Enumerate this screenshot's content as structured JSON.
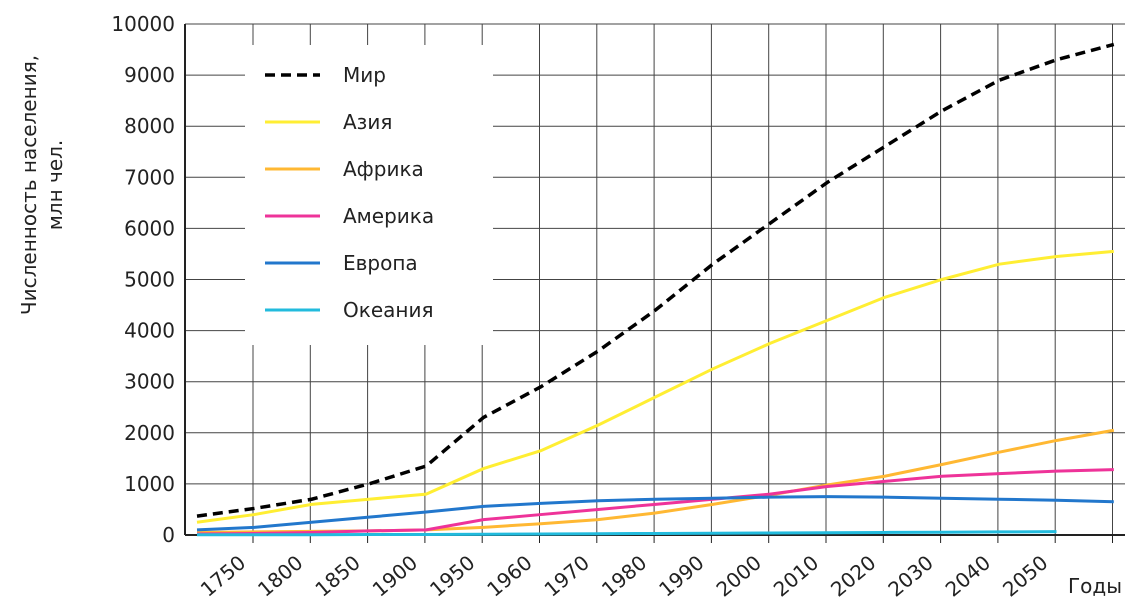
{
  "chart_data": {
    "type": "line",
    "ylabel": [
      "Численность населения,",
      "млн чел."
    ],
    "xlabel": "Годы",
    "categories": [
      "1750",
      "1800",
      "1850",
      "1900",
      "1950",
      "1960",
      "1970",
      "1980",
      "1990",
      "2000",
      "2010",
      "2020",
      "2030",
      "2040",
      "2050",
      null,
      null
    ],
    "series": [
      {
        "name": "Мир",
        "color": "#000000",
        "dash": true,
        "values": [
          370,
          520,
          700,
          1000,
          1350,
          2300,
          2900,
          3600,
          4400,
          5300,
          6100,
          6900,
          7600,
          8300,
          8900,
          9300,
          9600
        ]
      },
      {
        "name": "Азия",
        "color": "#ffee33",
        "values": [
          250,
          400,
          600,
          700,
          800,
          1300,
          1650,
          2150,
          2700,
          3250,
          3750,
          4200,
          4650,
          5000,
          5300,
          5450,
          5550
        ]
      },
      {
        "name": "Африка",
        "color": "#ffb833",
        "values": [
          50,
          60,
          70,
          80,
          100,
          150,
          220,
          300,
          430,
          600,
          780,
          980,
          1150,
          1380,
          1620,
          1850,
          2050
        ]
      },
      {
        "name": "Америка",
        "color": "#ee3399",
        "values": [
          20,
          30,
          50,
          80,
          100,
          300,
          400,
          500,
          600,
          700,
          800,
          950,
          1050,
          1150,
          1200,
          1250,
          1280
        ]
      },
      {
        "name": "Европа",
        "color": "#2277cc",
        "values": [
          100,
          150,
          250,
          350,
          450,
          560,
          620,
          670,
          700,
          720,
          740,
          750,
          740,
          720,
          700,
          680,
          650
        ]
      },
      {
        "name": "Океания",
        "color": "#22bbdd",
        "values": [
          5,
          5,
          5,
          10,
          10,
          15,
          20,
          25,
          30,
          35,
          40,
          45,
          50,
          55,
          60,
          65,
          null
        ]
      }
    ],
    "ylim": [
      0,
      10000
    ],
    "yticks": [
      0,
      1000,
      2000,
      3000,
      4000,
      5000,
      6000,
      7000,
      8000,
      9000,
      10000
    ],
    "grid": true
  }
}
